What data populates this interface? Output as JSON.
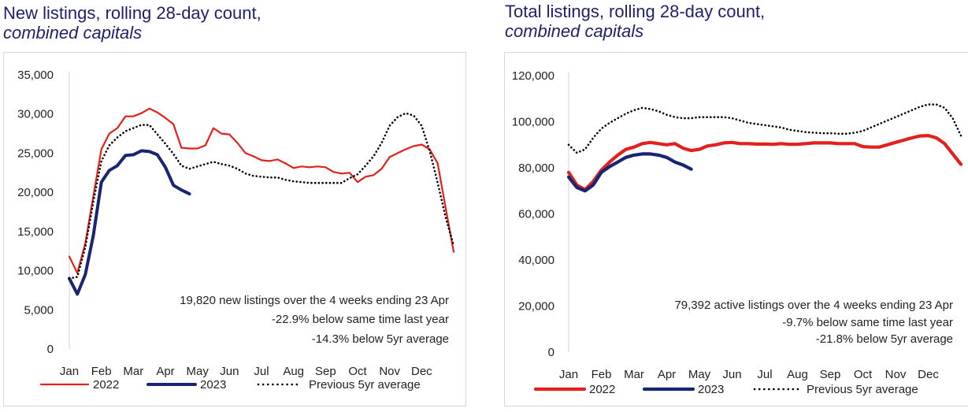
{
  "chart_data": [
    {
      "type": "line",
      "title": "New listings, rolling 28-day count,",
      "subtitle": "combined capitals",
      "xlabel": "",
      "ylabel": "",
      "ylim": [
        0,
        35000
      ],
      "yticks": [
        "0",
        "5,000",
        "10,000",
        "15,000",
        "20,000",
        "25,000",
        "30,000",
        "35,000"
      ],
      "ytick_values": [
        0,
        5000,
        10000,
        15000,
        20000,
        25000,
        30000,
        35000
      ],
      "xlim": [
        0,
        12
      ],
      "categories": [
        "Jan",
        "Feb",
        "Mar",
        "Apr",
        "May",
        "Jun",
        "Jul",
        "Aug",
        "Sep",
        "Oct",
        "Nov",
        "Dec"
      ],
      "grid": false,
      "annotation": [
        "19,820 new listings over the 4 weeks ending 23 Apr",
        "-22.9% below same time last year",
        "-14.3% below 5yr average"
      ],
      "series": [
        {
          "name": "2022",
          "color": "#e3211c",
          "style": "solid",
          "x": [
            0,
            0.25,
            0.5,
            0.75,
            1.0,
            1.25,
            1.5,
            1.75,
            2.0,
            2.25,
            2.5,
            2.75,
            3.0,
            3.25,
            3.5,
            3.75,
            4.0,
            4.25,
            4.5,
            4.75,
            5.0,
            5.25,
            5.5,
            5.75,
            6.0,
            6.25,
            6.5,
            6.75,
            7.0,
            7.25,
            7.5,
            7.75,
            8.0,
            8.25,
            8.5,
            8.75,
            9.0,
            9.25,
            9.5,
            9.75,
            10.0,
            10.25,
            10.5,
            10.75,
            11.0,
            11.25,
            11.5,
            11.75,
            12.0
          ],
          "values": [
            11800,
            9700,
            13500,
            19500,
            25500,
            27500,
            28200,
            29700,
            29700,
            30100,
            30700,
            30200,
            29500,
            28700,
            25700,
            25600,
            25600,
            26000,
            28200,
            27500,
            27400,
            26300,
            25000,
            24600,
            24100,
            24000,
            24200,
            23700,
            23100,
            23300,
            23200,
            23300,
            23200,
            22600,
            22400,
            22500,
            21300,
            22000,
            22200,
            23000,
            24500,
            25000,
            25500,
            25900,
            26100,
            25500,
            23700,
            18000,
            12400
          ]
        },
        {
          "name": "2023",
          "color": "#1a2474",
          "style": "solid",
          "x": [
            0,
            0.25,
            0.5,
            0.75,
            1.0,
            1.25,
            1.5,
            1.75,
            2.0,
            2.25,
            2.5,
            2.75,
            3.0,
            3.25,
            3.5,
            3.75
          ],
          "values": [
            9000,
            7000,
            9500,
            14500,
            21300,
            22800,
            23400,
            24700,
            24800,
            25300,
            25200,
            24800,
            23200,
            20900,
            20300,
            19800
          ]
        },
        {
          "name": "Previous 5yr average",
          "color": "#000000",
          "style": "dotted",
          "x": [
            0,
            0.25,
            0.5,
            0.75,
            1.0,
            1.25,
            1.5,
            1.75,
            2.0,
            2.25,
            2.5,
            2.75,
            3.0,
            3.25,
            3.5,
            3.75,
            4.0,
            4.25,
            4.5,
            4.75,
            5.0,
            5.25,
            5.5,
            5.75,
            6.0,
            6.25,
            6.5,
            6.75,
            7.0,
            7.25,
            7.5,
            7.75,
            8.0,
            8.25,
            8.5,
            8.75,
            9.0,
            9.25,
            9.5,
            9.75,
            10.0,
            10.25,
            10.5,
            10.75,
            11.0,
            11.25,
            11.5,
            11.75,
            12.0
          ],
          "values": [
            9000,
            9200,
            13000,
            18800,
            24000,
            26000,
            27000,
            27800,
            28200,
            28600,
            28600,
            27400,
            26200,
            24900,
            23400,
            23000,
            23300,
            23600,
            23900,
            23600,
            23400,
            23000,
            22400,
            22100,
            22000,
            21900,
            21900,
            21600,
            21400,
            21300,
            21200,
            21200,
            21200,
            21200,
            21200,
            21800,
            22300,
            23400,
            24600,
            26300,
            28500,
            29600,
            30100,
            29800,
            28500,
            25300,
            21200,
            16800,
            13200
          ]
        }
      ],
      "legend": [
        "2022",
        "2023",
        "Previous 5yr average"
      ],
      "legend_position": "bottom"
    },
    {
      "type": "line",
      "title": "Total listings, rolling 28-day count,",
      "subtitle": "combined capitals",
      "xlabel": "",
      "ylabel": "",
      "ylim": [
        0,
        120000
      ],
      "yticks": [
        "0",
        "20,000",
        "40,000",
        "60,000",
        "80,000",
        "100,000",
        "120,000"
      ],
      "ytick_values": [
        0,
        20000,
        40000,
        60000,
        80000,
        100000,
        120000
      ],
      "xlim": [
        0,
        12
      ],
      "categories": [
        "Jan",
        "Feb",
        "Mar",
        "Apr",
        "May",
        "Jun",
        "Jul",
        "Aug",
        "Sep",
        "Oct",
        "Nov",
        "Dec"
      ],
      "grid": false,
      "annotation": [
        "79,392 active listings over the 4 weeks ending 23 Apr",
        "-9.7% below same time last year",
        "-21.8% below 5yr average"
      ],
      "series": [
        {
          "name": "2022",
          "color": "#e3211c",
          "style": "solid",
          "x": [
            0,
            0.25,
            0.5,
            0.75,
            1.0,
            1.25,
            1.5,
            1.75,
            2.0,
            2.25,
            2.5,
            2.75,
            3.0,
            3.25,
            3.5,
            3.75,
            4.0,
            4.25,
            4.5,
            4.75,
            5.0,
            5.25,
            5.5,
            5.75,
            6.0,
            6.25,
            6.5,
            6.75,
            7.0,
            7.25,
            7.5,
            7.75,
            8.0,
            8.25,
            8.5,
            8.75,
            9.0,
            9.25,
            9.5,
            9.75,
            10.0,
            10.25,
            10.5,
            10.75,
            11.0,
            11.25,
            11.5,
            11.75,
            12.0
          ],
          "values": [
            78000,
            72500,
            70500,
            74000,
            79000,
            82500,
            85500,
            88000,
            89000,
            90500,
            91000,
            90500,
            90000,
            90500,
            88500,
            87500,
            88000,
            89500,
            90000,
            90800,
            91000,
            90500,
            90500,
            90300,
            90300,
            90200,
            90500,
            90200,
            90200,
            90500,
            90800,
            90800,
            90800,
            90500,
            90500,
            90500,
            89200,
            89000,
            89000,
            90000,
            91000,
            92000,
            93000,
            93800,
            94000,
            93000,
            90500,
            86000,
            81500
          ]
        },
        {
          "name": "2023",
          "color": "#1a2474",
          "style": "solid",
          "x": [
            0,
            0.25,
            0.5,
            0.75,
            1.0,
            1.25,
            1.5,
            1.75,
            2.0,
            2.25,
            2.5,
            2.75,
            3.0,
            3.25,
            3.5,
            3.75
          ],
          "values": [
            76000,
            71500,
            70000,
            72500,
            78000,
            80500,
            82500,
            84500,
            85500,
            86000,
            86000,
            85500,
            84500,
            82500,
            81200,
            79400
          ]
        },
        {
          "name": "Previous 5yr average",
          "color": "#000000",
          "style": "dotted",
          "x": [
            0,
            0.25,
            0.5,
            0.75,
            1.0,
            1.25,
            1.5,
            1.75,
            2.0,
            2.25,
            2.5,
            2.75,
            3.0,
            3.25,
            3.5,
            3.75,
            4.0,
            4.25,
            4.5,
            4.75,
            5.0,
            5.25,
            5.5,
            5.75,
            6.0,
            6.25,
            6.5,
            6.75,
            7.0,
            7.25,
            7.5,
            7.75,
            8.0,
            8.25,
            8.5,
            8.75,
            9.0,
            9.25,
            9.5,
            9.75,
            10.0,
            10.25,
            10.5,
            10.75,
            11.0,
            11.25,
            11.5,
            11.75,
            12.0
          ],
          "values": [
            90000,
            86500,
            88000,
            93000,
            97000,
            99500,
            101500,
            103500,
            105000,
            106000,
            105500,
            104500,
            103000,
            102000,
            101500,
            101500,
            102000,
            102000,
            102000,
            102000,
            101500,
            100500,
            99500,
            99000,
            98500,
            98000,
            97500,
            96500,
            96000,
            95500,
            95200,
            95000,
            95000,
            94800,
            94800,
            95200,
            96000,
            97500,
            99000,
            100500,
            102000,
            103500,
            105000,
            106500,
            107500,
            107500,
            106000,
            101500,
            94000
          ]
        }
      ],
      "legend": [
        "2022",
        "2023",
        "Previous 5yr average"
      ],
      "legend_position": "bottom"
    }
  ]
}
